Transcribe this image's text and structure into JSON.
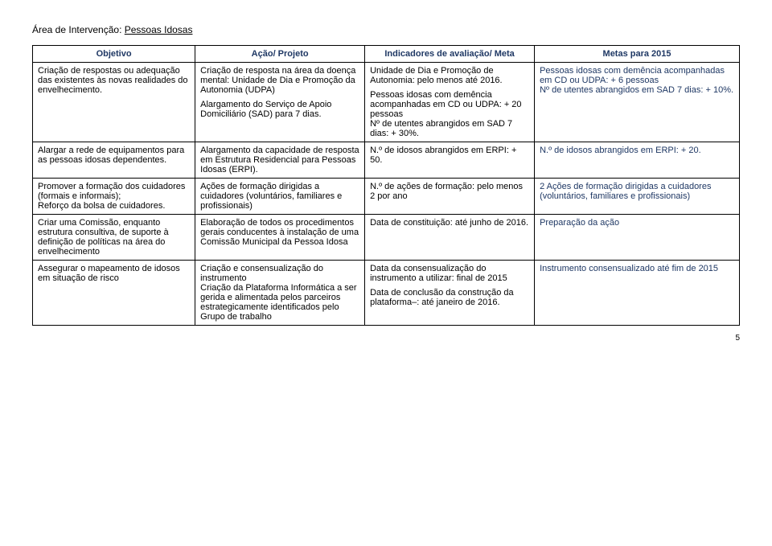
{
  "section": {
    "prefix": "Área de Intervenção: ",
    "topic": "Pessoas Idosas"
  },
  "headers": {
    "c1": "Objetivo",
    "c2": "Ação/ Projeto",
    "c3": "Indicadores de avaliação/ Meta",
    "c4": "Metas para 2015"
  },
  "rows": [
    {
      "objetivo": "Criação de respostas ou adequação das existentes às novas realidades do envelhecimento.",
      "acao": [
        "Criação de resposta na área da doença mental: Unidade de Dia e Promoção da Autonomia (UDPA)",
        "Alargamento do Serviço de Apoio Domiciliário (SAD) para 7 dias."
      ],
      "indicadores": [
        "Unidade de Dia e Promoção de Autonomia: pelo menos até 2016.",
        "Pessoas idosas com demência acompanhadas em CD ou UDPA: + 20 pessoas\nNº de utentes abrangidos em SAD 7 dias: + 30%."
      ],
      "metas": "Pessoas idosas com demência acompanhadas em CD ou UDPA: + 6 pessoas\nNº de utentes abrangidos em SAD 7 dias: + 10%."
    },
    {
      "objetivo": "Alargar a rede de equipamentos para as pessoas idosas dependentes.",
      "acao": [
        "Alargamento da capacidade de resposta em Estrutura Residencial para Pessoas Idosas (ERPI)."
      ],
      "indicadores": [
        "N.º de idosos abrangidos em ERPI: + 50."
      ],
      "metas": "N.º de idosos abrangidos em ERPI: + 20."
    },
    {
      "objetivo": "Promover a formação dos cuidadores (formais e informais);\nReforço da bolsa de cuidadores.",
      "acao": [
        "Ações de formação dirigidas a cuidadores (voluntários, familiares e profissionais)"
      ],
      "indicadores": [
        "N.º de ações de formação: pelo menos 2 por ano"
      ],
      "metas": "2 Ações de formação dirigidas a cuidadores (voluntários, familiares e profissionais)"
    },
    {
      "objetivo": "Criar uma Comissão, enquanto estrutura consultiva, de suporte à definição de políticas na área do envelhecimento",
      "acao": [
        "Elaboração de todos os procedimentos gerais conducentes à instalação de uma Comissão Municipal da Pessoa Idosa"
      ],
      "indicadores": [
        "Data de constituição: até junho de 2016."
      ],
      "metas": "Preparação da ação"
    },
    {
      "objetivo": "Assegurar o mapeamento de idosos em situação de risco",
      "acao": [
        "Criação e consensualização do instrumento\nCriação da Plataforma Informática a ser gerida e alimentada pelos parceiros estrategicamente identificados pelo Grupo de trabalho"
      ],
      "indicadores": [
        "Data da consensualização do instrumento a utilizar: final de 2015",
        "Data de conclusão da construção da plataforma–: até janeiro de 2016."
      ],
      "metas": "Instrumento consensualizado até fim de 2015"
    }
  ],
  "page": "5"
}
